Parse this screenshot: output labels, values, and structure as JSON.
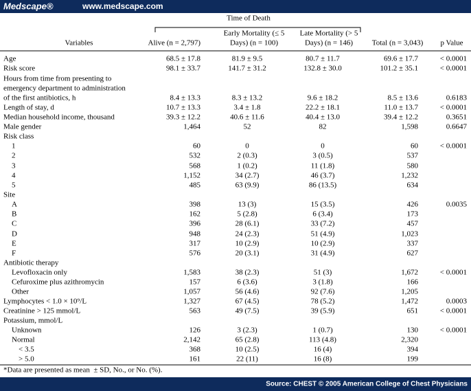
{
  "header": {
    "brand": "Medscape®",
    "url": "www.medscape.com"
  },
  "table": {
    "group_header": "Time of Death",
    "columns": [
      "Variables",
      "Alive (n = 2,797)",
      [
        "Early Mortality (≤ 5",
        "Days) (n = 100)"
      ],
      [
        "Late Mortality (> 5",
        "Days) (n = 146)"
      ],
      "Total (n = 3,043)",
      "p Value"
    ],
    "rows": [
      {
        "label": "Age",
        "cells": [
          "68.5 ± 17.8",
          "81.9 ± 9.5",
          "80.7 ± 11.7",
          "69.6 ± 17.7",
          "< 0.0001"
        ]
      },
      {
        "label": "Risk score",
        "cells": [
          "98.1 ± 33.7",
          "141.7 ± 31.2",
          "132.8 ± 30.0",
          "101.2 ± 35.1",
          "< 0.0001"
        ]
      },
      {
        "label": [
          "Hours from time from presenting to",
          "emergency department to administration",
          "of the first antibiotics, h"
        ],
        "cells": [
          "8.4 ± 13.3",
          "8.3 ± 13.2",
          "9.6 ± 18.2",
          "8.5 ± 13.6",
          "0.6183"
        ]
      },
      {
        "label": "Length of stay, d",
        "cells": [
          "10.7 ± 13.3",
          "3.4 ± 1.8",
          "22.2 ± 18.1",
          "11.0 ± 13.7",
          "< 0.0001"
        ]
      },
      {
        "label": "Median household income, thousand",
        "cells": [
          "39.3 ± 12.2",
          "40.6 ± 11.6",
          "40.4 ± 13.0",
          "39.4 ± 12.2",
          "0.3651"
        ]
      },
      {
        "label": "Male gender",
        "cells": [
          "1,464",
          "52",
          "82",
          "1,598",
          "0.6647"
        ]
      },
      {
        "label": "Risk class",
        "cells": [
          null,
          null,
          null,
          null,
          null
        ]
      },
      {
        "label": "1",
        "cells": [
          "60",
          "0",
          "0",
          "60",
          "< 0.0001"
        ]
      },
      {
        "label": "2",
        "cells": [
          "532",
          "2 (0.3)",
          "3 (0.5)",
          "537",
          null
        ]
      },
      {
        "label": "3",
        "cells": [
          "568",
          "1 (0.2)",
          "11 (1.8)",
          "580",
          null
        ]
      },
      {
        "label": "4",
        "cells": [
          "1,152",
          "34 (2.7)",
          "46 (3.7)",
          "1,232",
          null
        ]
      },
      {
        "label": "5",
        "cells": [
          "485",
          "63 (9.9)",
          "86 (13.5)",
          "634",
          null
        ]
      },
      {
        "label": "Site",
        "cells": [
          null,
          null,
          null,
          null,
          null
        ]
      },
      {
        "label": "A",
        "cells": [
          "398",
          "13 (3)",
          "15 (3.5)",
          "426",
          "0.0035"
        ]
      },
      {
        "label": "B",
        "cells": [
          "162",
          "5 (2.8)",
          "6 (3.4)",
          "173",
          null
        ]
      },
      {
        "label": "C",
        "cells": [
          "396",
          "28 (6.1)",
          "33 (7.2)",
          "457",
          null
        ]
      },
      {
        "label": "D",
        "cells": [
          "948",
          "24 (2.3)",
          "51 (4.9)",
          "1,023",
          null
        ]
      },
      {
        "label": "E",
        "cells": [
          "317",
          "10 (2.9)",
          "10 (2.9)",
          "337",
          null
        ]
      },
      {
        "label": "F",
        "cells": [
          "576",
          "20 (3.1)",
          "31 (4.9)",
          "627",
          null
        ]
      },
      {
        "label": "Antibiotic therapy",
        "cells": [
          null,
          null,
          null,
          null,
          null
        ]
      },
      {
        "label": "Levofloxacin only",
        "cells": [
          "1,583",
          "38 (2.3)",
          "51 (3)",
          "1,672",
          "< 0.0001"
        ]
      },
      {
        "label": "Cefuroxime plus azithromycin",
        "cells": [
          "157",
          "6 (3.6)",
          "3 (1.8)",
          "166",
          null
        ]
      },
      {
        "label": "Other",
        "cells": [
          "1,057",
          "56 (4.6)",
          "92 (7.6)",
          "1,205",
          null
        ]
      },
      {
        "label": "Lymphocytes < 1.0 × 10⁹/L",
        "cells": [
          "1,327",
          "67 (4.5)",
          "78 (5.2)",
          "1,472",
          "0.0003"
        ]
      },
      {
        "label": "Creatinine > 125 mmol/L",
        "cells": [
          "563",
          "49 (7.5)",
          "39 (5.9)",
          "651",
          "< 0.0001"
        ]
      },
      {
        "label": "Potassium, mmol/L",
        "cells": [
          null,
          null,
          null,
          null,
          null
        ]
      },
      {
        "label": "Unknown",
        "cells": [
          "126",
          "3 (2.3)",
          "1 (0.7)",
          "130",
          "< 0.0001"
        ]
      },
      {
        "label": "Normal",
        "cells": [
          "2,142",
          "65 (2.8)",
          "113 (4.8)",
          "2,320",
          null
        ]
      },
      {
        "label": "< 3.5",
        "cells": [
          "368",
          "10 (2.5)",
          "16 (4)",
          "394",
          null
        ]
      },
      {
        "label": "> 5.0",
        "cells": [
          "161",
          "22 (11)",
          "16 (8)",
          "199",
          null
        ]
      }
    ],
    "footnote": "*Data are presented as mean  ± SD, No., or No. (%)."
  },
  "footer": {
    "source": "Source: CHEST © 2005 American College of Chest Physicians"
  }
}
